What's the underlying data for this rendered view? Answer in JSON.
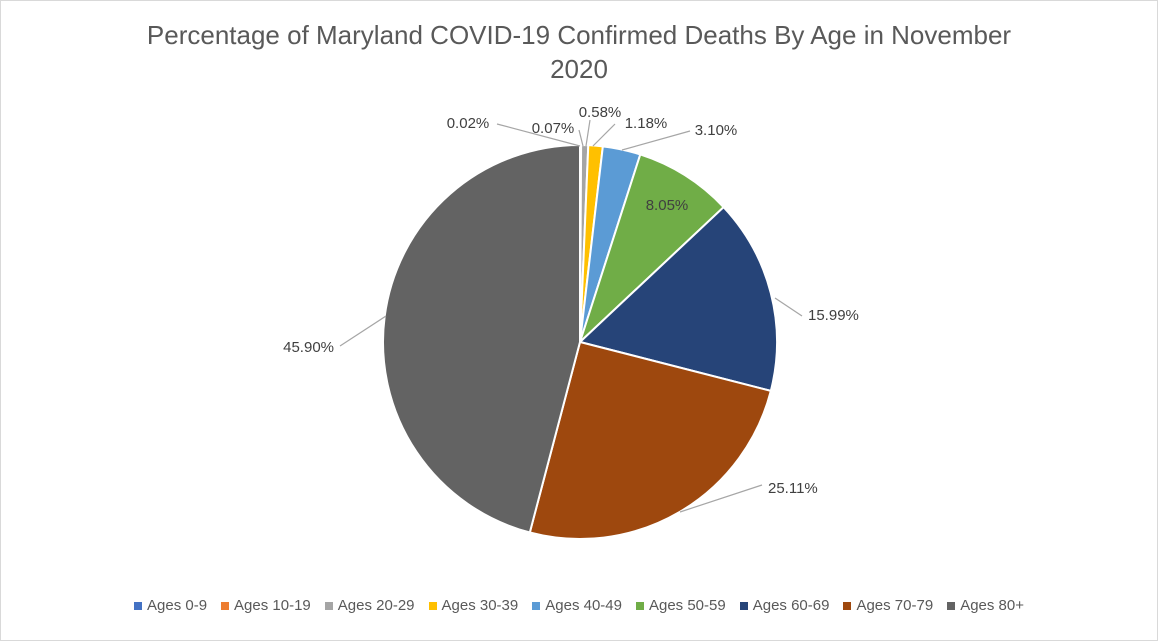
{
  "chart_data": {
    "type": "pie",
    "title_line1": "Percentage of Maryland COVID-19 Confirmed Deaths By Age in November",
    "title_line2": "2020",
    "categories": [
      "Ages 0-9",
      "Ages 10-19",
      "Ages 20-29",
      "Ages 30-39",
      "Ages 40-49",
      "Ages 50-59",
      "Ages 60-69",
      "Ages 70-79",
      "Ages 80+"
    ],
    "values": [
      0.02,
      0.07,
      0.58,
      1.18,
      3.1,
      8.05,
      15.99,
      25.11,
      45.9
    ],
    "data_labels": [
      "0.02%",
      "0.07%",
      "0.58%",
      "1.18%",
      "3.10%",
      "8.05%",
      "15.99%",
      "25.11%",
      "45.90%"
    ],
    "colors": [
      "#4472C4",
      "#ED7D31",
      "#A5A5A5",
      "#FFC000",
      "#5B9BD5",
      "#70AD47",
      "#264478",
      "#9E480E",
      "#636363"
    ],
    "legend_position": "bottom"
  }
}
